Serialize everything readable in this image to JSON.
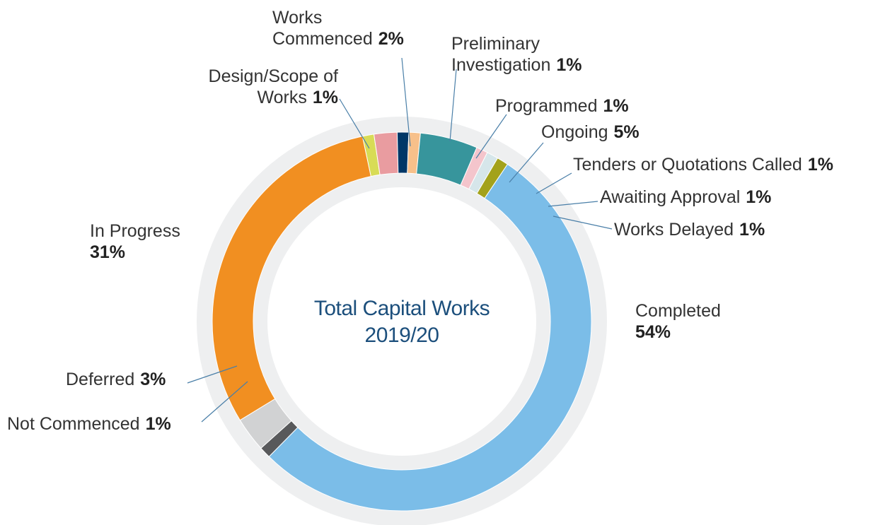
{
  "chart_data": {
    "type": "donut",
    "title": "Total Capital Works 2019/20",
    "categories": [
      "Design/Scope of Works",
      "Works Commenced",
      "Preliminary Investigation",
      "Programmed",
      "Ongoing",
      "Tenders or Quotations Called",
      "Awaiting Approval",
      "Works Delayed",
      "Completed",
      "Not Commenced",
      "Deferred",
      "In Progress"
    ],
    "values": [
      1,
      2,
      1,
      1,
      5,
      1,
      1,
      1,
      54,
      1,
      3,
      31
    ],
    "value_labels": [
      "1%",
      "2%",
      "1%",
      "1%",
      "5%",
      "1%",
      "1%",
      "1%",
      "54%",
      "1%",
      "3%",
      "31%"
    ],
    "colors": [
      "#d8dc56",
      "#e99ca0",
      "#003767",
      "#f7c08a",
      "#37959c",
      "#f4c5cc",
      "#d6e6ea",
      "#a3a21b",
      "#7bbde8",
      "#58595b",
      "#d1d2d3",
      "#f18f21"
    ]
  }
}
